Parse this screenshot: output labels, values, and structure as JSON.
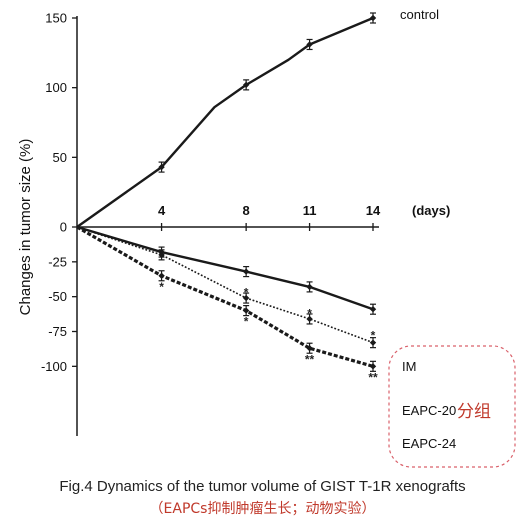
{
  "chart_data": {
    "type": "line",
    "ylabel": "Changes in tumor size (%)",
    "xlabel": "(days)",
    "ylim": [
      -100,
      150
    ],
    "y_ticks": [
      150,
      100,
      50,
      0,
      -25,
      -50,
      -75,
      -100
    ],
    "y_tick_labels": [
      "150",
      "100",
      "50",
      "0",
      "-25",
      "-50",
      "-75",
      "-100"
    ],
    "x_ticks": [
      4,
      8,
      11,
      14
    ],
    "x_tick_labels": [
      "4",
      "8",
      "11",
      "14"
    ],
    "xlim": [
      0,
      14
    ],
    "grid": false,
    "legend": "none",
    "series": [
      {
        "name": "control",
        "style": "solid",
        "x": [
          0,
          4,
          6.5,
          8,
          10,
          11,
          14
        ],
        "y": [
          0,
          43,
          86,
          102,
          120,
          131,
          150
        ]
      },
      {
        "name": "IM",
        "style": "solid",
        "x": [
          0,
          4,
          8,
          11,
          14
        ],
        "y": [
          0,
          -18,
          -32,
          -43,
          -59
        ]
      },
      {
        "name": "EAPC-20",
        "style": "dotted",
        "x": [
          0,
          4,
          8,
          11,
          14
        ],
        "y": [
          0,
          -20,
          -51,
          -66,
          -83
        ]
      },
      {
        "name": "EAPC-24",
        "style": "dashed",
        "x": [
          0,
          4,
          8,
          11,
          14
        ],
        "y": [
          0,
          -35,
          -60,
          -87,
          -100
        ]
      }
    ],
    "group_label": "分组",
    "significance_marks": [
      {
        "x": 4,
        "y": -43,
        "text": "*"
      },
      {
        "x": 8,
        "y": -47,
        "text": "*"
      },
      {
        "x": 8,
        "y": -68,
        "text": "*"
      },
      {
        "x": 11,
        "y": -62,
        "text": "*"
      },
      {
        "x": 11,
        "y": -95,
        "text": "**"
      },
      {
        "x": 14,
        "y": -78,
        "text": "*"
      },
      {
        "x": 14,
        "y": -108,
        "text": "**"
      }
    ]
  },
  "caption": {
    "main": "Fig.4 Dynamics of the tumor volume of GIST T-1R xenografts",
    "sub": "（EAPCs抑制肿瘤生长；动物实验）"
  },
  "colors": {
    "line": "#1a1a1a",
    "highlight": "#c0392b"
  }
}
